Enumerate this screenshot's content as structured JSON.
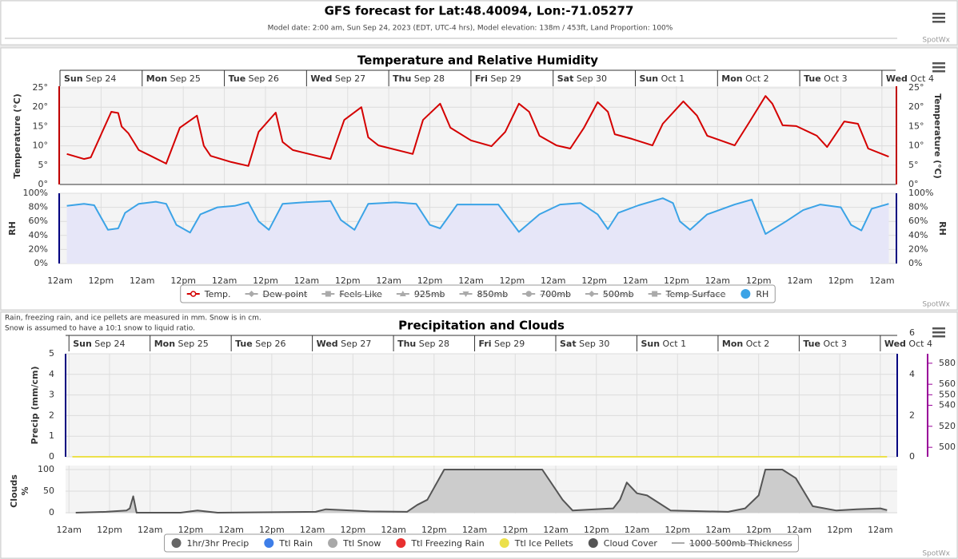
{
  "header": {
    "title": "GFS forecast for Lat:48.40094, Lon:-71.05277",
    "subtitle": "Model date: 2:00 am, Sun Sep 24, 2023 (EDT, UTC-4 hrs), Model elevation: 138m / 453ft, Land Proportion: 100%"
  },
  "credit": "SpotWx",
  "notes": [
    "Rain, freezing rain, and ice pellets are measured in mm. Snow is in cm.",
    "Snow is assumed to have a 10:1 snow to liquid ratio."
  ],
  "chart_data": [
    {
      "type": "line",
      "title": "Temperature and Relative Humidity",
      "grid": true,
      "xlim": [
        0,
        244
      ],
      "xticks": [
        {
          "value": 0,
          "label": "12am"
        },
        {
          "value": 12,
          "label": "12pm"
        },
        {
          "value": 24,
          "label": "12am"
        },
        {
          "value": 36,
          "label": "12pm"
        },
        {
          "value": 48,
          "label": "12am"
        },
        {
          "value": 60,
          "label": "12pm"
        },
        {
          "value": 72,
          "label": "12am"
        },
        {
          "value": 84,
          "label": "12pm"
        },
        {
          "value": 96,
          "label": "12am"
        },
        {
          "value": 108,
          "label": "12pm"
        },
        {
          "value": 120,
          "label": "12am"
        },
        {
          "value": 132,
          "label": "12pm"
        },
        {
          "value": 144,
          "label": "12am"
        },
        {
          "value": 156,
          "label": "12pm"
        },
        {
          "value": 168,
          "label": "12am"
        },
        {
          "value": 180,
          "label": "12pm"
        },
        {
          "value": 192,
          "label": "12am"
        },
        {
          "value": 204,
          "label": "12pm"
        },
        {
          "value": 216,
          "label": "12am"
        },
        {
          "value": 228,
          "label": "12pm"
        },
        {
          "value": 240,
          "label": "12am"
        }
      ],
      "days": [
        {
          "value": 0,
          "label": "Sun Sep 24"
        },
        {
          "value": 24,
          "label": "Mon Sep 25"
        },
        {
          "value": 48,
          "label": "Tue Sep 26"
        },
        {
          "value": 72,
          "label": "Wed Sep 27"
        },
        {
          "value": 96,
          "label": "Thu Sep 28"
        },
        {
          "value": 120,
          "label": "Fri Sep 29"
        },
        {
          "value": 144,
          "label": "Sat Sep 30"
        },
        {
          "value": 168,
          "label": "Sun Oct 1"
        },
        {
          "value": 192,
          "label": "Mon Oct 2"
        },
        {
          "value": 216,
          "label": "Tue Oct 3"
        },
        {
          "value": 240,
          "label": "Wed Oct 4"
        }
      ],
      "ylabel": "Temperature (°C)",
      "ylim": [
        0,
        25
      ],
      "yticks": [
        {
          "value": 0,
          "label": "0°"
        },
        {
          "value": 5,
          "label": "5°"
        },
        {
          "value": 10,
          "label": "10°"
        },
        {
          "value": 15,
          "label": "15°"
        },
        {
          "value": 20,
          "label": "20°"
        },
        {
          "value": 25,
          "label": "25°"
        }
      ],
      "y2label": "RH",
      "y2lim": [
        0,
        100
      ],
      "y2ticks": [
        {
          "value": 0,
          "label": "0%"
        },
        {
          "value": 20,
          "label": "20%"
        },
        {
          "value": 40,
          "label": "40%"
        },
        {
          "value": 60,
          "label": "60%"
        },
        {
          "value": 80,
          "label": "80%"
        },
        {
          "value": 100,
          "label": "100%"
        }
      ],
      "series": [
        {
          "name": "Temp.",
          "color": "#d40000",
          "marker": "circle",
          "type": "line",
          "x": [
            2,
            7,
            9,
            15,
            17,
            18,
            20,
            23,
            26,
            31,
            35,
            40,
            42,
            44,
            50,
            55,
            58,
            63,
            65,
            68,
            76,
            79,
            83,
            88,
            90,
            93,
            103,
            106,
            111,
            114,
            120,
            126,
            130,
            134,
            137,
            140,
            145,
            149,
            153,
            157,
            160,
            162,
            167,
            173,
            176,
            182,
            186,
            189,
            197,
            201,
            206,
            208,
            211,
            215,
            221,
            224,
            229,
            233,
            236,
            242
          ],
          "values": [
            7.9,
            6.6,
            7,
            18.8,
            18.5,
            15,
            13.2,
            8.9,
            7.6,
            5.4,
            14.7,
            17.8,
            10,
            7.4,
            5.8,
            4.8,
            13.6,
            18.6,
            11,
            8.9,
            7.2,
            6.6,
            16.7,
            20,
            12.2,
            10.1,
            7.9,
            16.7,
            20.9,
            14.7,
            11.4,
            9.9,
            13.6,
            20.9,
            18.8,
            12.6,
            10.1,
            9.3,
            14.7,
            21.3,
            18.8,
            13,
            11.8,
            10.1,
            15.7,
            21.5,
            17.8,
            12.6,
            10.1,
            15.7,
            22.9,
            20.9,
            15.3,
            15.1,
            12.6,
            9.7,
            16.3,
            15.7,
            9.3,
            7.2
          ]
        },
        {
          "name": "Dew point",
          "color": "#999999",
          "marker": "diamond",
          "hidden": true
        },
        {
          "name": "Feels Like",
          "color": "#999999",
          "marker": "square",
          "hidden": true
        },
        {
          "name": "925mb",
          "color": "#999999",
          "marker": "triangle",
          "hidden": true
        },
        {
          "name": "850mb",
          "color": "#999999",
          "marker": "triangle-down",
          "hidden": true
        },
        {
          "name": "700mb",
          "color": "#999999",
          "marker": "circle",
          "hidden": true
        },
        {
          "name": "500mb",
          "color": "#999999",
          "marker": "diamond",
          "hidden": true
        },
        {
          "name": "Temp Surface",
          "color": "#999999",
          "marker": "square",
          "hidden": true
        },
        {
          "name": "RH",
          "color": "#3ba3e6",
          "fill_color": "#e6e6f8",
          "marker": "dot",
          "type": "area",
          "axis": "y2",
          "x": [
            2,
            7,
            10,
            14,
            17,
            19,
            23,
            28,
            31,
            34,
            38,
            41,
            46,
            51,
            55,
            58,
            61,
            65,
            71,
            79,
            82,
            86,
            90,
            98,
            104,
            108,
            111,
            116,
            128,
            134,
            140,
            146,
            152,
            157,
            160,
            163,
            169,
            176,
            179,
            181,
            184,
            189,
            197,
            202,
            206,
            212,
            217,
            222,
            228,
            231,
            234,
            237,
            242
          ],
          "values": [
            82,
            85,
            83,
            48,
            50,
            72,
            85,
            88,
            85,
            55,
            44,
            70,
            80,
            82,
            87,
            60,
            48,
            85,
            87,
            89,
            62,
            48,
            85,
            87,
            85,
            55,
            50,
            84,
            84,
            45,
            70,
            84,
            86,
            70,
            49,
            72,
            83,
            93,
            86,
            60,
            48,
            70,
            84,
            91,
            42,
            60,
            76,
            84,
            80,
            55,
            47,
            78,
            85
          ]
        }
      ]
    },
    {
      "type": "line",
      "title": "Precipitation and Clouds",
      "grid": true,
      "xlim": [
        -1,
        245
      ],
      "xticks": [
        {
          "value": 0,
          "label": "12am"
        },
        {
          "value": 12,
          "label": "12pm"
        },
        {
          "value": 24,
          "label": "12am"
        },
        {
          "value": 36,
          "label": "12pm"
        },
        {
          "value": 48,
          "label": "12am"
        },
        {
          "value": 60,
          "label": "12pm"
        },
        {
          "value": 72,
          "label": "12am"
        },
        {
          "value": 84,
          "label": "12pm"
        },
        {
          "value": 96,
          "label": "12am"
        },
        {
          "value": 108,
          "label": "12pm"
        },
        {
          "value": 120,
          "label": "12am"
        },
        {
          "value": 132,
          "label": "12pm"
        },
        {
          "value": 144,
          "label": "12am"
        },
        {
          "value": 156,
          "label": "12pm"
        },
        {
          "value": 168,
          "label": "12am"
        },
        {
          "value": 180,
          "label": "12pm"
        },
        {
          "value": 192,
          "label": "12am"
        },
        {
          "value": 204,
          "label": "12pm"
        },
        {
          "value": 216,
          "label": "12am"
        },
        {
          "value": 228,
          "label": "12pm"
        },
        {
          "value": 240,
          "label": "12am"
        }
      ],
      "days": [
        {
          "value": 0,
          "label": "Sun Sep 24"
        },
        {
          "value": 24,
          "label": "Mon Sep 25"
        },
        {
          "value": 48,
          "label": "Tue Sep 26"
        },
        {
          "value": 72,
          "label": "Wed Sep 27"
        },
        {
          "value": 96,
          "label": "Thu Sep 28"
        },
        {
          "value": 120,
          "label": "Fri Sep 29"
        },
        {
          "value": 144,
          "label": "Sat Sep 30"
        },
        {
          "value": 168,
          "label": "Sun Oct 1"
        },
        {
          "value": 192,
          "label": "Mon Oct 2"
        },
        {
          "value": 216,
          "label": "Tue Oct 3"
        },
        {
          "value": 240,
          "label": "Wed Oct 4"
        }
      ],
      "ylabel": "Precip (mm/cm)",
      "ylim": [
        0,
        5
      ],
      "yticks": [
        0,
        1,
        2,
        3,
        4,
        5
      ],
      "y2lim": [
        0,
        5
      ],
      "y2ticks": [
        0,
        2,
        4,
        6
      ],
      "cloud_ylabel": [
        "Clouds",
        "%"
      ],
      "cloud_ylim": [
        0,
        100
      ],
      "cloud_yticks": [
        0,
        50,
        100
      ],
      "thickness_ylim": [
        491,
        589
      ],
      "thickness_yticks": [
        500,
        520,
        540,
        550,
        560,
        580
      ],
      "series": [
        {
          "name": "1hr/3hr Precip",
          "color": "#666666",
          "marker": "dot"
        },
        {
          "name": "Ttl Rain",
          "color": "#3e7ee8",
          "marker": "dot"
        },
        {
          "name": "Ttl Snow",
          "color": "#a8a8a8",
          "marker": "dot"
        },
        {
          "name": "Ttl Freezing Rain",
          "color": "#e83030",
          "marker": "dot"
        },
        {
          "name": "Ttl Ice Pellets",
          "color": "#ece04a",
          "marker": "dot",
          "type": "line",
          "x": [
            1,
            242
          ],
          "values": [
            0,
            0
          ]
        },
        {
          "name": "Cloud Cover",
          "color": "#555555",
          "fill_color": "#cccccc",
          "marker": "dot",
          "type": "area",
          "axis": "cloud",
          "x": [
            2,
            11,
            17,
            18,
            19,
            20,
            33,
            38,
            44,
            73,
            76,
            89,
            100,
            103,
            106,
            111,
            140,
            146,
            149,
            161,
            163,
            165,
            168,
            171,
            178,
            195,
            200,
            204,
            206,
            211,
            215,
            220,
            227,
            233,
            240,
            242
          ],
          "values": [
            0,
            2,
            5,
            10,
            38,
            0,
            0,
            5,
            0,
            2,
            8,
            3,
            2,
            18,
            30,
            100,
            100,
            30,
            5,
            10,
            30,
            70,
            45,
            40,
            5,
            2,
            10,
            40,
            100,
            100,
            80,
            15,
            5,
            8,
            10,
            6
          ]
        },
        {
          "name": "1000-500mb Thickness",
          "color": "#999999",
          "marker": "none",
          "hidden": true
        }
      ]
    }
  ]
}
